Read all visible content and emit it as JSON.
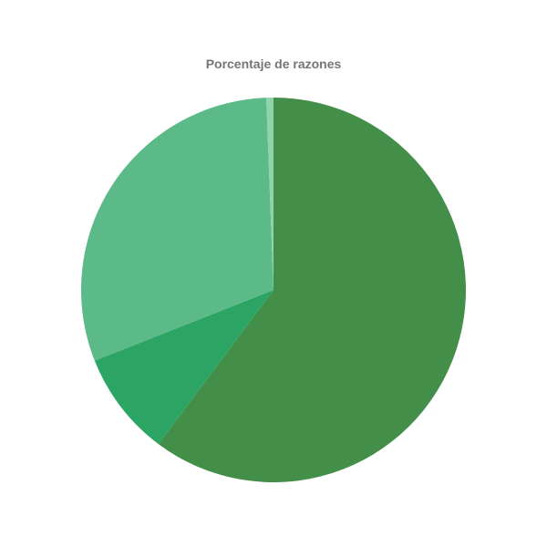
{
  "chart_data": {
    "type": "pie",
    "title": "Porcentaje de razones",
    "categories": [
      "",
      "",
      "",
      ""
    ],
    "values": [
      60.2,
      8.8,
      30.4,
      0.6
    ],
    "colors": [
      "#438f49",
      "#2ca564",
      "#5cba89",
      "#8fd4a8"
    ],
    "start_angle": "top",
    "direction": "clockwise",
    "legend": "none"
  }
}
